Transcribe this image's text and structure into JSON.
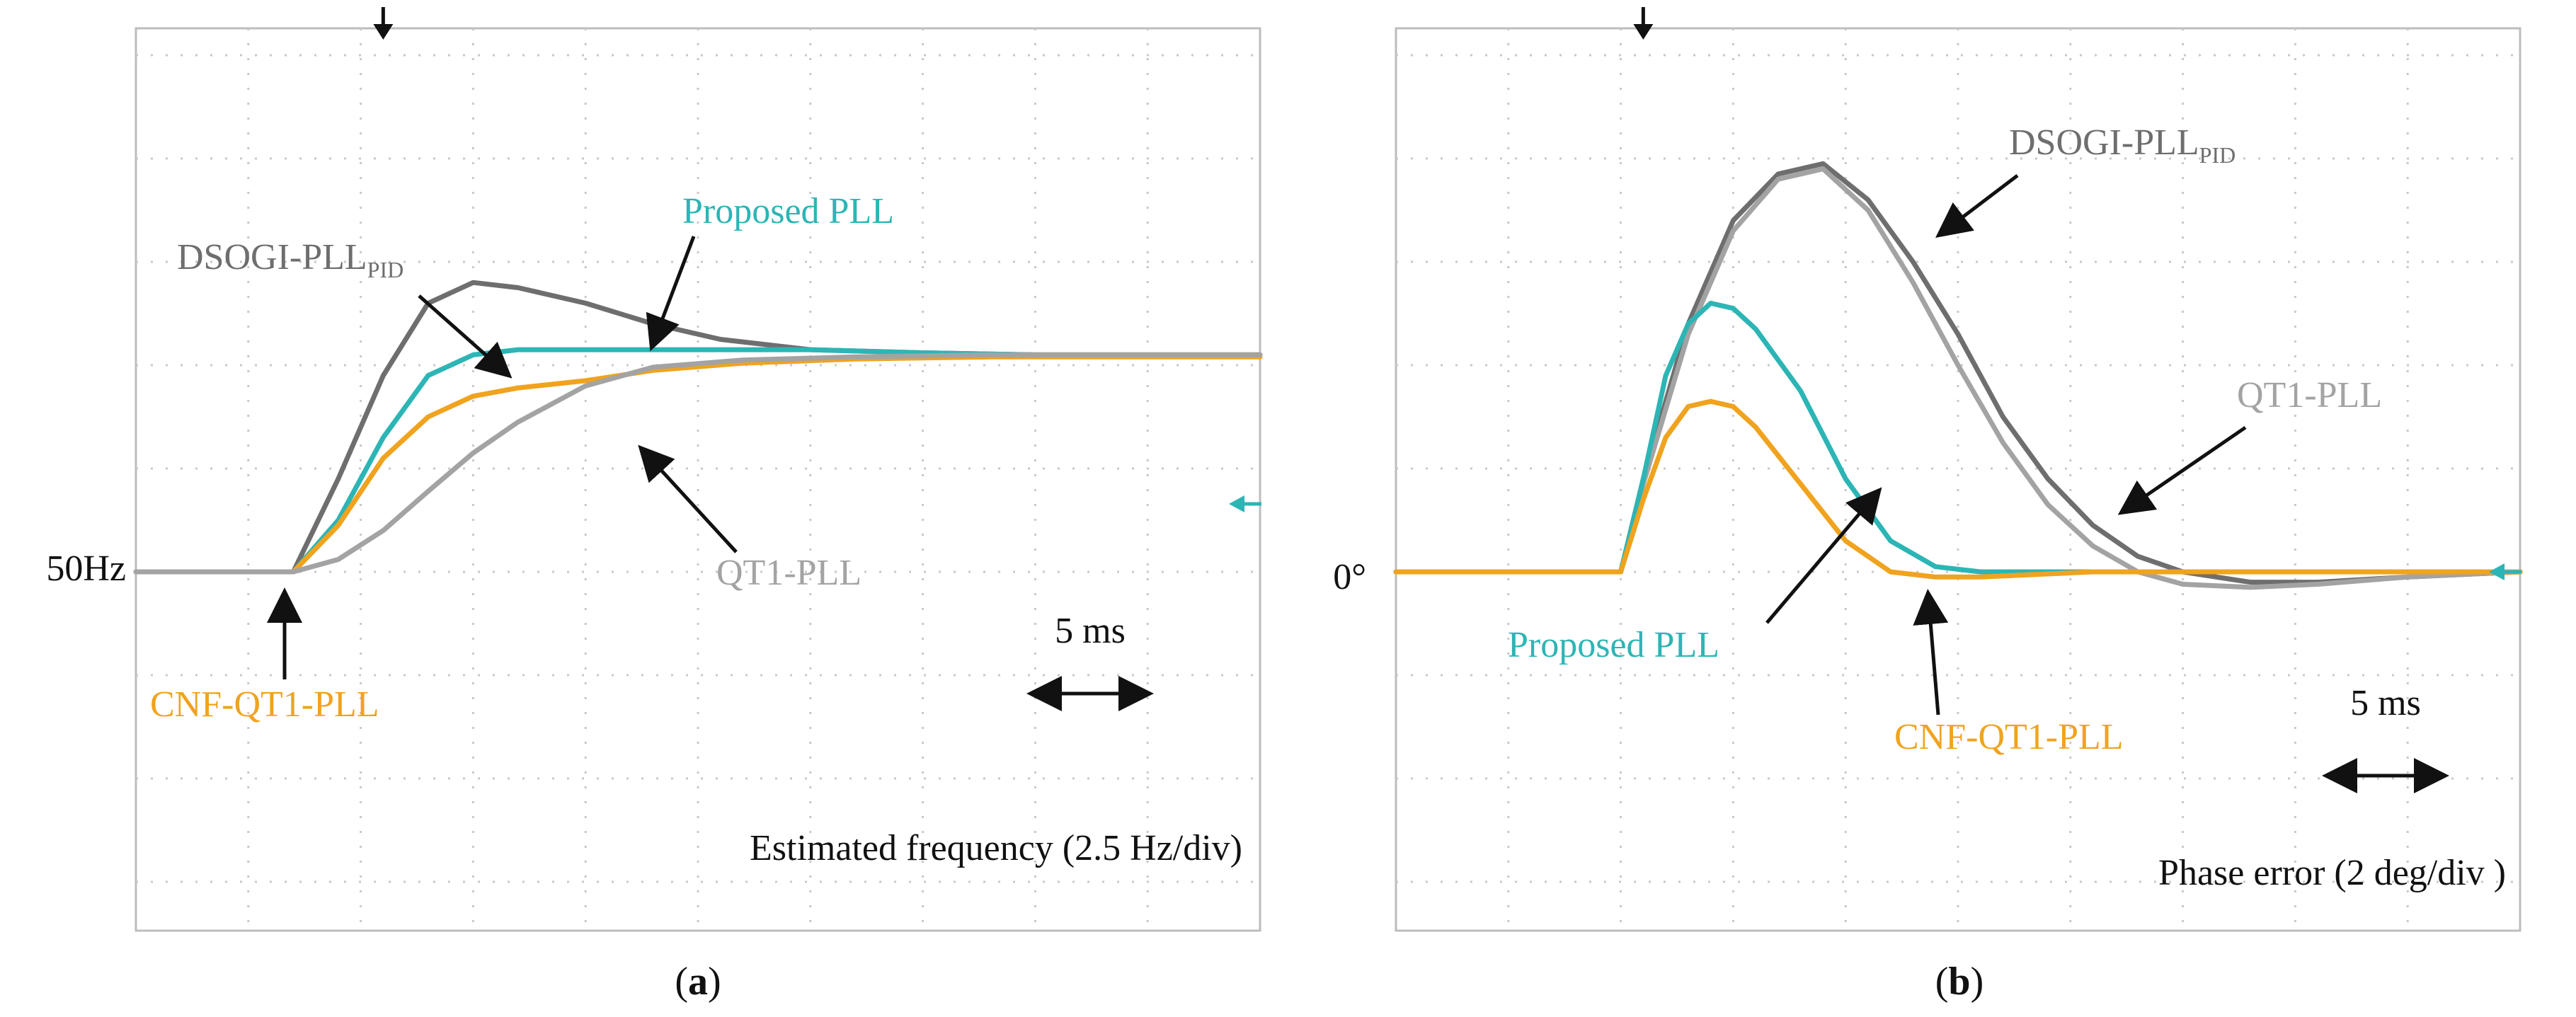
{
  "figure": {
    "panels": [
      {
        "caption": "(a)"
      },
      {
        "caption": "(b)"
      }
    ]
  },
  "colors": {
    "proposed": "#2db5b5",
    "cnf": "#f0a31e",
    "dsogi": "#6e6e6e",
    "qt1": "#a3a3a3",
    "grid": "#c8c8c8",
    "frame": "#bdbdbd",
    "arrow": "#111111"
  },
  "chart_data": [
    {
      "type": "line",
      "title": "Estimated frequency (2.5 Hz/div)",
      "xlabel": "",
      "ylabel": "",
      "baseline_label": "50Hz",
      "time_scale_label": "5 ms",
      "x_unit": "ms",
      "xlim": [
        0,
        50
      ],
      "x_div": 5,
      "y_unit": "div",
      "ylim": [
        -3,
        5
      ],
      "y_div": 1,
      "trigger_x": 11,
      "step_x": 7,
      "series": [
        {
          "name": "DSOGI-PLL",
          "subscript": "PID",
          "color_key": "dsogi",
          "x": [
            0,
            7,
            9,
            11,
            13,
            15,
            17,
            20,
            23,
            26,
            30,
            35,
            40,
            50
          ],
          "y": [
            0,
            0,
            0.9,
            1.9,
            2.6,
            2.8,
            2.75,
            2.6,
            2.4,
            2.25,
            2.15,
            2.12,
            2.1,
            2.1
          ]
        },
        {
          "name": "Proposed PLL",
          "subscript": "",
          "color_key": "proposed",
          "x": [
            0,
            7,
            9,
            11,
            13,
            15,
            17,
            20,
            25,
            30,
            35,
            40,
            50
          ],
          "y": [
            0,
            0,
            0.5,
            1.3,
            1.9,
            2.1,
            2.15,
            2.15,
            2.15,
            2.15,
            2.12,
            2.1,
            2.1
          ]
        },
        {
          "name": "CNF-QT1-PLL",
          "subscript": "",
          "color_key": "cnf",
          "x": [
            0,
            7,
            9,
            11,
            13,
            15,
            17,
            20,
            23,
            27,
            32,
            38,
            44,
            50
          ],
          "y": [
            0,
            0,
            0.45,
            1.1,
            1.5,
            1.7,
            1.78,
            1.85,
            1.95,
            2.02,
            2.06,
            2.08,
            2.08,
            2.08
          ]
        },
        {
          "name": "QT1-PLL",
          "subscript": "",
          "color_key": "qt1",
          "x": [
            0,
            7,
            9,
            11,
            13,
            15,
            17,
            20,
            23,
            27,
            32,
            38,
            44,
            50
          ],
          "y": [
            0,
            0,
            0.12,
            0.4,
            0.78,
            1.15,
            1.45,
            1.8,
            1.98,
            2.05,
            2.08,
            2.1,
            2.1,
            2.1
          ]
        }
      ],
      "annotations": [
        {
          "text": "DSOGI-PLL",
          "sub": "PID",
          "series": "DSOGI-PLL"
        },
        {
          "text": "Proposed PLL",
          "series": "Proposed PLL"
        },
        {
          "text": "QT1-PLL",
          "series": "QT1-PLL"
        },
        {
          "text": "CNF-QT1-PLL",
          "series": "CNF-QT1-PLL"
        }
      ]
    },
    {
      "type": "line",
      "title": "Phase error (2 deg/div )",
      "xlabel": "",
      "ylabel": "",
      "baseline_label": "0°",
      "time_scale_label": "5 ms",
      "x_unit": "ms",
      "xlim": [
        0,
        50
      ],
      "x_div": 5,
      "y_unit": "div",
      "ylim": [
        -3,
        5
      ],
      "y_div": 1,
      "trigger_x": 11,
      "step_x": 10,
      "series": [
        {
          "name": "DSOGI-PLL",
          "subscript": "PID",
          "color_key": "dsogi",
          "x": [
            0,
            10,
            11,
            13,
            15,
            17,
            19,
            21,
            23,
            25,
            27,
            29,
            31,
            33,
            35,
            38,
            41,
            45,
            50
          ],
          "y": [
            0,
            0,
            0.9,
            2.4,
            3.4,
            3.85,
            3.95,
            3.6,
            3.0,
            2.3,
            1.5,
            0.9,
            0.45,
            0.15,
            0.0,
            -0.1,
            -0.1,
            -0.05,
            0
          ]
        },
        {
          "name": "QT1-PLL",
          "subscript": "",
          "color_key": "qt1",
          "x": [
            0,
            10,
            11,
            13,
            15,
            17,
            19,
            21,
            23,
            25,
            27,
            29,
            31,
            33,
            35,
            38,
            41,
            45,
            50
          ],
          "y": [
            0,
            0,
            0.85,
            2.3,
            3.3,
            3.8,
            3.9,
            3.5,
            2.8,
            2.0,
            1.25,
            0.65,
            0.25,
            0.0,
            -0.12,
            -0.15,
            -0.12,
            -0.05,
            0
          ]
        },
        {
          "name": "Proposed PLL",
          "subscript": "",
          "color_key": "proposed",
          "x": [
            0,
            10,
            11,
            12,
            13,
            14,
            15,
            16,
            18,
            20,
            22,
            24,
            26,
            28,
            31,
            35,
            40,
            50
          ],
          "y": [
            0,
            0,
            0.9,
            1.9,
            2.4,
            2.6,
            2.55,
            2.35,
            1.75,
            0.9,
            0.3,
            0.05,
            0.0,
            0.0,
            0.0,
            0.0,
            0.0,
            0
          ]
        },
        {
          "name": "CNF-QT1-PLL",
          "subscript": "",
          "color_key": "cnf",
          "x": [
            0,
            10,
            11,
            12,
            13,
            14,
            15,
            16,
            18,
            20,
            22,
            24,
            26,
            28,
            31,
            35,
            40,
            50
          ],
          "y": [
            0,
            0,
            0.7,
            1.3,
            1.6,
            1.65,
            1.6,
            1.4,
            0.85,
            0.3,
            0.0,
            -0.05,
            -0.05,
            -0.03,
            0.0,
            0.0,
            0.0,
            0
          ]
        }
      ],
      "annotations": [
        {
          "text": "DSOGI-PLL",
          "sub": "PID",
          "series": "DSOGI-PLL"
        },
        {
          "text": "QT1-PLL",
          "series": "QT1-PLL"
        },
        {
          "text": "Proposed PLL",
          "series": "Proposed PLL"
        },
        {
          "text": "CNF-QT1-PLL",
          "series": "CNF-QT1-PLL"
        }
      ]
    }
  ]
}
